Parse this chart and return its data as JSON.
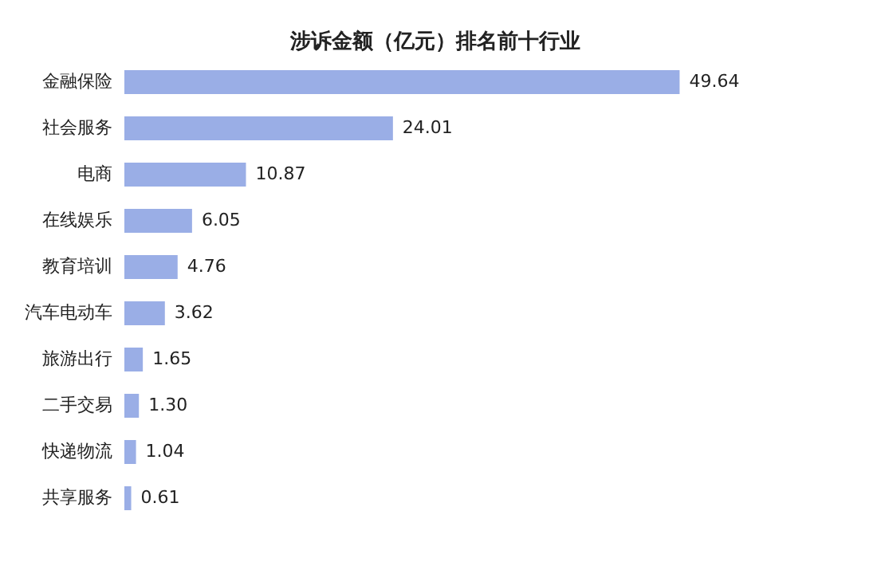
{
  "chart_data": {
    "type": "bar",
    "orientation": "horizontal",
    "title": "涉诉金额（亿元）排名前十行业",
    "categories": [
      "金融保险",
      "社会服务",
      "电商",
      "在线娱乐",
      "教育培训",
      "汽车电动车",
      "旅游出行",
      "二手交易",
      "快递物流",
      "共享服务"
    ],
    "values": [
      49.64,
      24.01,
      10.87,
      6.05,
      4.76,
      3.62,
      1.65,
      1.3,
      1.04,
      0.61
    ],
    "value_labels": [
      "49.64",
      "24.01",
      "10.87",
      "6.05",
      "4.76",
      "3.62",
      "1.65",
      "1.30",
      "1.04",
      "0.61"
    ],
    "color": "#9aaee6"
  }
}
